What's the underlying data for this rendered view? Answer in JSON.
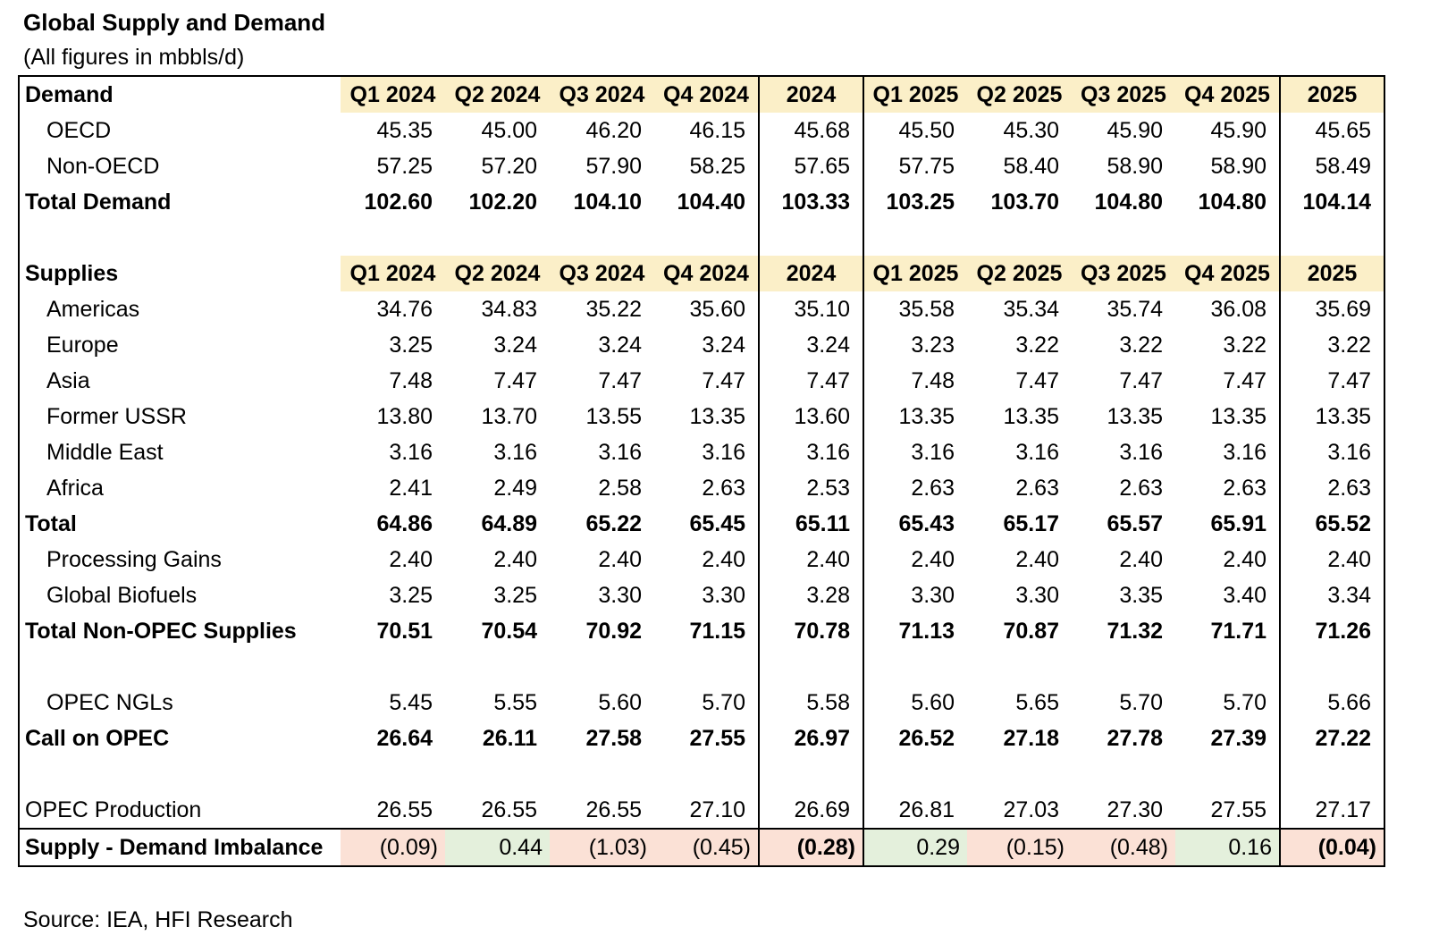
{
  "title": "Global Supply and Demand",
  "subtitle": "(All figures in mbbls/d)",
  "source": "Source: IEA, HFI Research",
  "colors": {
    "header_bg": "#fbefc8",
    "negative_bg": "#fbe1d6",
    "positive_bg": "#e4f0dc"
  },
  "columns": [
    "Q1 2024",
    "Q2 2024",
    "Q3 2024",
    "Q4 2024",
    "2024",
    "Q1 2025",
    "Q2 2025",
    "Q3 2025",
    "Q4 2025",
    "2025"
  ],
  "demand": {
    "header": "Demand",
    "rows": [
      {
        "label": "OECD",
        "values": [
          "45.35",
          "45.00",
          "46.20",
          "46.15",
          "45.68",
          "45.50",
          "45.30",
          "45.90",
          "45.90",
          "45.65"
        ]
      },
      {
        "label": "Non-OECD",
        "values": [
          "57.25",
          "57.20",
          "57.90",
          "58.25",
          "57.65",
          "57.75",
          "58.40",
          "58.90",
          "58.90",
          "58.49"
        ]
      }
    ],
    "total": {
      "label": "Total Demand",
      "values": [
        "102.60",
        "102.20",
        "104.10",
        "104.40",
        "103.33",
        "103.25",
        "103.70",
        "104.80",
        "104.80",
        "104.14"
      ]
    }
  },
  "supplies": {
    "header": "Supplies",
    "rows": [
      {
        "label": "Americas",
        "values": [
          "34.76",
          "34.83",
          "35.22",
          "35.60",
          "35.10",
          "35.58",
          "35.34",
          "35.74",
          "36.08",
          "35.69"
        ]
      },
      {
        "label": "Europe",
        "values": [
          "3.25",
          "3.24",
          "3.24",
          "3.24",
          "3.24",
          "3.23",
          "3.22",
          "3.22",
          "3.22",
          "3.22"
        ]
      },
      {
        "label": "Asia",
        "values": [
          "7.48",
          "7.47",
          "7.47",
          "7.47",
          "7.47",
          "7.48",
          "7.47",
          "7.47",
          "7.47",
          "7.47"
        ]
      },
      {
        "label": "Former USSR",
        "values": [
          "13.80",
          "13.70",
          "13.55",
          "13.35",
          "13.60",
          "13.35",
          "13.35",
          "13.35",
          "13.35",
          "13.35"
        ]
      },
      {
        "label": "Middle East",
        "values": [
          "3.16",
          "3.16",
          "3.16",
          "3.16",
          "3.16",
          "3.16",
          "3.16",
          "3.16",
          "3.16",
          "3.16"
        ]
      },
      {
        "label": "Africa",
        "values": [
          "2.41",
          "2.49",
          "2.58",
          "2.63",
          "2.53",
          "2.63",
          "2.63",
          "2.63",
          "2.63",
          "2.63"
        ]
      }
    ],
    "total": {
      "label": "Total",
      "values": [
        "64.86",
        "64.89",
        "65.22",
        "65.45",
        "65.11",
        "65.43",
        "65.17",
        "65.57",
        "65.91",
        "65.52"
      ]
    },
    "extra_rows": [
      {
        "label": "Processing Gains",
        "values": [
          "2.40",
          "2.40",
          "2.40",
          "2.40",
          "2.40",
          "2.40",
          "2.40",
          "2.40",
          "2.40",
          "2.40"
        ]
      },
      {
        "label": "Global Biofuels",
        "values": [
          "3.25",
          "3.25",
          "3.30",
          "3.30",
          "3.28",
          "3.30",
          "3.30",
          "3.35",
          "3.40",
          "3.34"
        ]
      }
    ],
    "non_opec_total": {
      "label": "Total Non-OPEC Supplies",
      "values": [
        "70.51",
        "70.54",
        "70.92",
        "71.15",
        "70.78",
        "71.13",
        "70.87",
        "71.32",
        "71.71",
        "71.26"
      ]
    }
  },
  "opec_ngls": {
    "label": "OPEC NGLs",
    "values": [
      "5.45",
      "5.55",
      "5.60",
      "5.70",
      "5.58",
      "5.60",
      "5.65",
      "5.70",
      "5.70",
      "5.66"
    ]
  },
  "call_on_opec": {
    "label": "Call on OPEC",
    "values": [
      "26.64",
      "26.11",
      "27.58",
      "27.55",
      "26.97",
      "26.52",
      "27.18",
      "27.78",
      "27.39",
      "27.22"
    ]
  },
  "opec_production": {
    "label": "OPEC Production",
    "values": [
      "26.55",
      "26.55",
      "26.55",
      "27.10",
      "26.69",
      "26.81",
      "27.03",
      "27.30",
      "27.55",
      "27.17"
    ]
  },
  "imbalance": {
    "label": "Supply - Demand Imbalance",
    "values": [
      "(0.09)",
      "0.44",
      "(1.03)",
      "(0.45)",
      "(0.28)",
      "0.29",
      "(0.15)",
      "(0.48)",
      "0.16",
      "(0.04)"
    ],
    "signs": [
      "neg",
      "pos",
      "neg",
      "neg",
      "neg",
      "pos",
      "neg",
      "neg",
      "pos",
      "neg"
    ]
  }
}
